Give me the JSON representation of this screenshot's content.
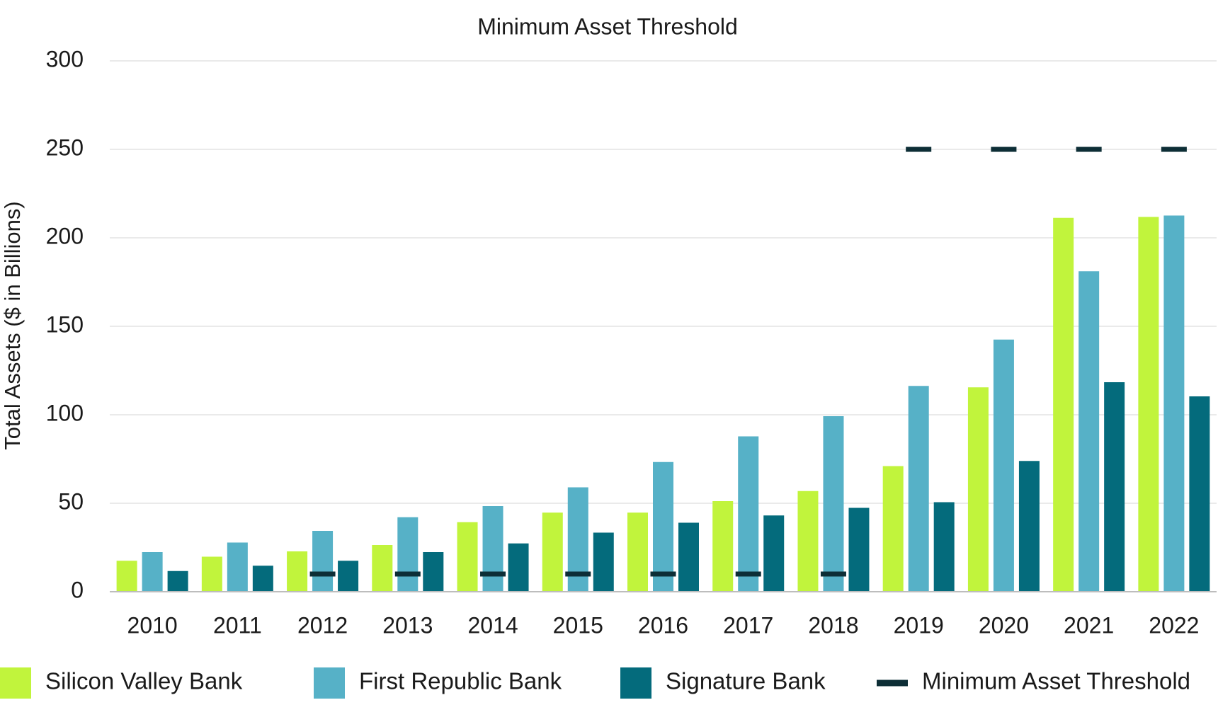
{
  "chart_data": {
    "type": "bar",
    "title": "Minimum Asset Threshold",
    "xlabel": "",
    "ylabel": "Total Assets ($ in Billions)",
    "ylim": [
      0,
      300
    ],
    "yticks": [
      0,
      50,
      100,
      150,
      200,
      250,
      300
    ],
    "grid": true,
    "legend_position": "bottom",
    "categories": [
      "2010",
      "2011",
      "2012",
      "2013",
      "2014",
      "2015",
      "2016",
      "2017",
      "2018",
      "2019",
      "2020",
      "2021",
      "2022"
    ],
    "series": [
      {
        "name": "Silicon Valley Bank",
        "color": "#c1f43c",
        "values": [
          17.5,
          19.8,
          22.8,
          26.4,
          39.3,
          44.7,
          44.7,
          51.2,
          56.9,
          71.0,
          115.5,
          211.3,
          211.8
        ]
      },
      {
        "name": "First Republic Bank",
        "color": "#56b1c7",
        "values": [
          22.4,
          27.8,
          34.4,
          42.1,
          48.4,
          59.0,
          73.3,
          87.8,
          99.2,
          116.3,
          142.5,
          181.1,
          212.6
        ]
      },
      {
        "name": "Signature Bank",
        "color": "#046b7c",
        "values": [
          11.7,
          14.7,
          17.5,
          22.4,
          27.3,
          33.4,
          39.0,
          43.1,
          47.4,
          50.6,
          73.9,
          118.4,
          110.4
        ]
      }
    ],
    "threshold": {
      "name": "Minimum Asset Threshold",
      "color": "#0d2e36",
      "values": [
        null,
        null,
        10,
        10,
        10,
        10,
        10,
        10,
        10,
        250,
        250,
        250,
        250
      ]
    }
  }
}
